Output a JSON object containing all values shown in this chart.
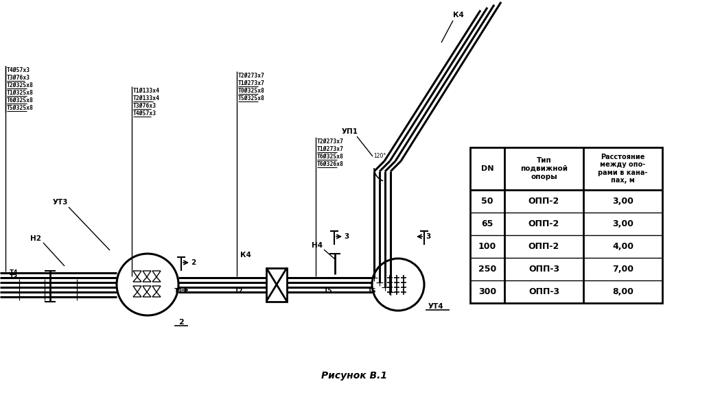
{
  "title": "Рисунок В.1",
  "bg_color": "#ffffff",
  "table_headers": [
    "DN",
    "Тип\nподвижной\nопоры",
    "Расстояние\nмежду опо-\nрами в кана-\nпах, м"
  ],
  "table_rows": [
    [
      "50",
      "ОПП-2",
      "3,00"
    ],
    [
      "65",
      "ОПП-2",
      "3,00"
    ],
    [
      "100",
      "ОПП-2",
      "4,00"
    ],
    [
      "250",
      "ОПП-3",
      "7,00"
    ],
    [
      "300",
      "ОПП-3",
      "8,00"
    ]
  ],
  "labels_group1": [
    "Т4Ø57х3",
    "Т3Ø76х3",
    "Т2Ø325х8",
    "Т1Ø325х8",
    "Т6Ø325х8",
    "Т5Ø325х8"
  ],
  "labels_group2": [
    "Т1Ø133х4",
    "Т2Ø133х4",
    "Т3Ø76х3",
    "Т4Ø57х3"
  ],
  "labels_group3": [
    "Т2Ø273х7",
    "Т1Ø273х7",
    "Т0Ø325х8",
    "Т5Ø325х8"
  ],
  "labels_group4": [
    "Т2Ø273х7",
    "Т1Ø273х7",
    "Т6Ø325х8",
    "Т6Ø326х8"
  ]
}
